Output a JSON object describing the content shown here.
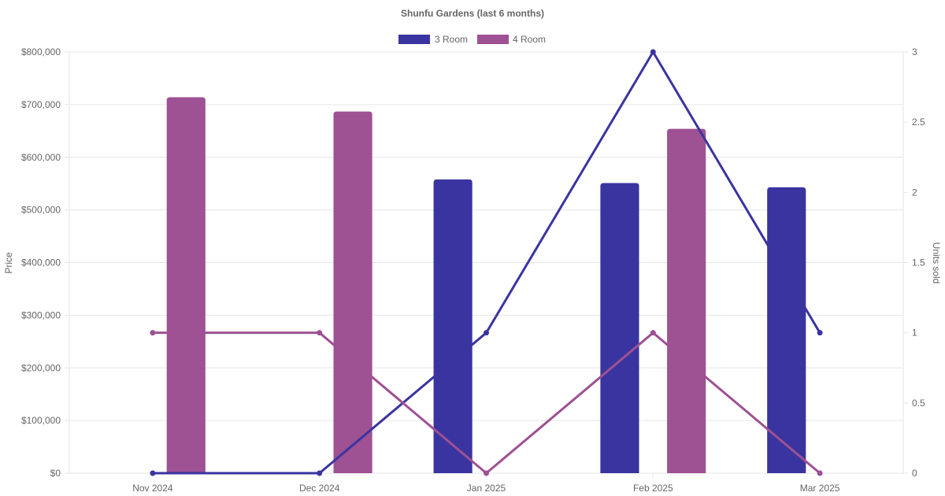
{
  "chart_data": {
    "type": "bar",
    "title": "Shunfu Gardens (last 6 months)",
    "categories": [
      "Nov 2024",
      "Dec 2024",
      "Jan 2025",
      "Feb 2025",
      "Mar 2025"
    ],
    "series": [
      {
        "name": "3 Room",
        "type": "bar",
        "axis": "left",
        "color": "#3a34a0",
        "values": [
          null,
          null,
          558000,
          551000,
          543000
        ]
      },
      {
        "name": "4 Room",
        "type": "bar",
        "axis": "left",
        "color": "#9e5193",
        "values": [
          714000,
          687000,
          null,
          654000,
          null
        ]
      },
      {
        "name": "3 Room",
        "type": "line",
        "axis": "right",
        "color": "#3a34a0",
        "values": [
          0,
          0,
          1,
          3,
          1
        ]
      },
      {
        "name": "4 Room",
        "type": "line",
        "axis": "right",
        "color": "#9e5193",
        "values": [
          1,
          1,
          0,
          1,
          0
        ]
      }
    ],
    "ylabel": "Price",
    "y2label": "Units sold",
    "ylim": [
      0,
      800000
    ],
    "y2lim": [
      0,
      3
    ],
    "yticks": [
      "$0",
      "$100,000",
      "$200,000",
      "$300,000",
      "$400,000",
      "$500,000",
      "$600,000",
      "$700,000",
      "$800,000"
    ],
    "y2ticks": [
      "0",
      "0.5",
      "1",
      "1.5",
      "2",
      "2.5",
      "3"
    ],
    "legend": [
      {
        "label": "3 Room",
        "color": "#3a34a0"
      },
      {
        "label": "4 Room",
        "color": "#9e5193"
      }
    ],
    "legend_position": "top-center",
    "grid": true
  }
}
